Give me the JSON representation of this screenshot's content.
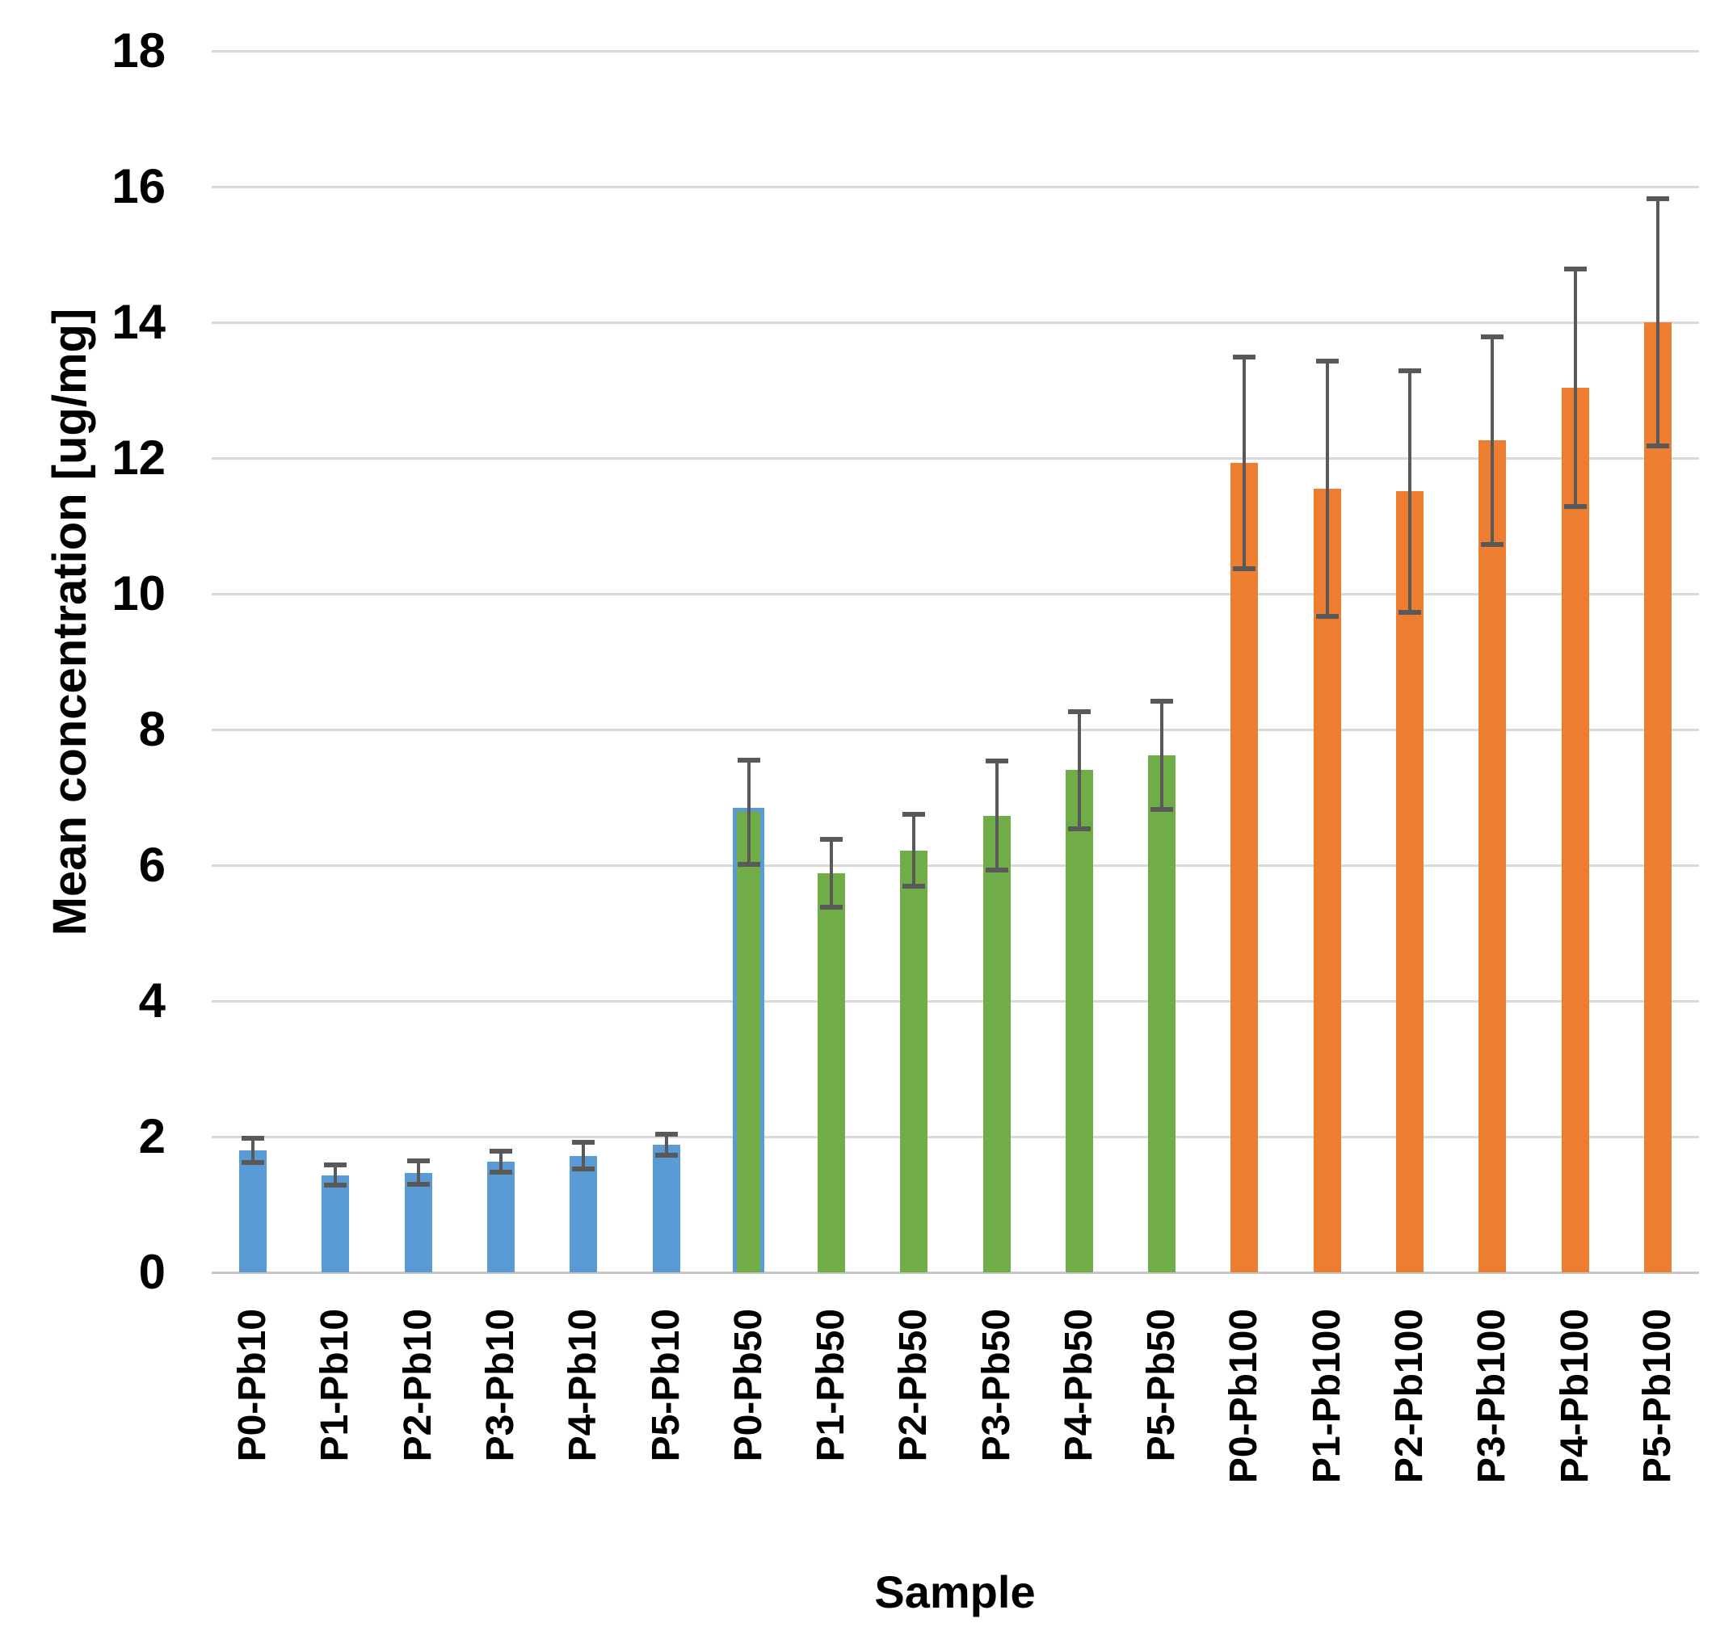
{
  "chart_data": {
    "type": "bar",
    "title": "",
    "xlabel": "Sample",
    "ylabel": "Mean concentration [ug/mg]",
    "ylim": [
      0,
      18
    ],
    "yticks": [
      0,
      2,
      4,
      6,
      8,
      10,
      12,
      14,
      16,
      18
    ],
    "grid": true,
    "legend": "none",
    "error_bars": true,
    "groups": [
      {
        "name": "Pb10",
        "color": "#5B9BD5"
      },
      {
        "name": "Pb50",
        "color": "#70AD47"
      },
      {
        "name": "Pb100",
        "color": "#ED7D31"
      }
    ],
    "bars": [
      {
        "label": "P0-Pb10",
        "group": 0,
        "value": 1.8,
        "error": 0.18
      },
      {
        "label": "P1-Pb10",
        "group": 0,
        "value": 1.43,
        "error": 0.15
      },
      {
        "label": "P2-Pb10",
        "group": 0,
        "value": 1.47,
        "error": 0.17
      },
      {
        "label": "P3-Pb10",
        "group": 0,
        "value": 1.63,
        "error": 0.15
      },
      {
        "label": "P4-Pb10",
        "group": 0,
        "value": 1.72,
        "error": 0.2
      },
      {
        "label": "P5-Pb10",
        "group": 0,
        "value": 1.88,
        "error": 0.15
      },
      {
        "label": "P0-Pb50",
        "group": 1,
        "value": 6.78,
        "error": 0.77,
        "outline": "#5B9BD5"
      },
      {
        "label": "P1-Pb50",
        "group": 1,
        "value": 5.88,
        "error": 0.5
      },
      {
        "label": "P2-Pb50",
        "group": 1,
        "value": 6.22,
        "error": 0.53
      },
      {
        "label": "P3-Pb50",
        "group": 1,
        "value": 6.73,
        "error": 0.8
      },
      {
        "label": "P4-Pb50",
        "group": 1,
        "value": 7.4,
        "error": 0.86
      },
      {
        "label": "P5-Pb50",
        "group": 1,
        "value": 7.62,
        "error": 0.8
      },
      {
        "label": "P0-Pb100",
        "group": 2,
        "value": 11.93,
        "error": 1.56
      },
      {
        "label": "P1-Pb100",
        "group": 2,
        "value": 11.55,
        "error": 1.88
      },
      {
        "label": "P2-Pb100",
        "group": 2,
        "value": 11.51,
        "error": 1.78
      },
      {
        "label": "P3-Pb100",
        "group": 2,
        "value": 12.26,
        "error": 1.53
      },
      {
        "label": "P4-Pb100",
        "group": 2,
        "value": 13.03,
        "error": 1.75
      },
      {
        "label": "P5-Pb100",
        "group": 2,
        "value": 14.0,
        "error": 1.82
      }
    ],
    "colors": {
      "error_bar": "#595959",
      "gridline": "#D9D9D9",
      "axis_line": "#C6C6C6",
      "text": "#000000",
      "background": "#FFFFFF"
    }
  }
}
